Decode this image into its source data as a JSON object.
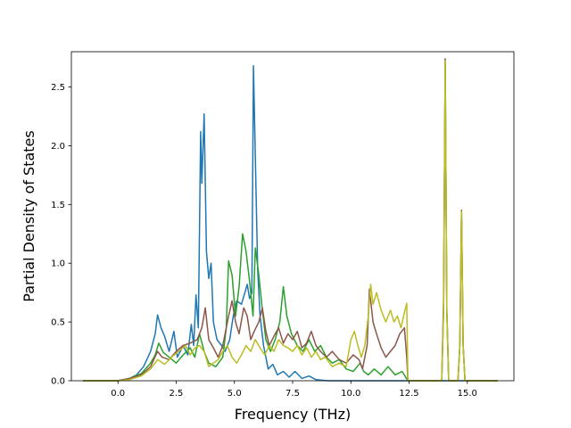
{
  "chart_data": {
    "type": "line",
    "title": "",
    "xlabel": "Frequency (THz)",
    "ylabel": "Partial Density of States",
    "xlim": [
      -2.0,
      17.0
    ],
    "ylim": [
      0.0,
      2.8
    ],
    "xticks": [
      0.0,
      2.5,
      5.0,
      7.5,
      10.0,
      12.5,
      15.0
    ],
    "xtick_labels": [
      "0.0",
      "2.5",
      "5.0",
      "7.5",
      "10.0",
      "12.5",
      "15.0"
    ],
    "yticks": [
      0.0,
      0.5,
      1.0,
      1.5,
      2.0,
      2.5
    ],
    "ytick_labels": [
      "0.0",
      "0.5",
      "1.0",
      "1.5",
      "2.0",
      "2.5"
    ],
    "grid": false,
    "legend": false,
    "series": [
      {
        "color": "#1f77b4",
        "points": [
          [
            -1.5,
            0.0
          ],
          [
            0.0,
            0.0
          ],
          [
            0.5,
            0.02
          ],
          [
            0.8,
            0.05
          ],
          [
            1.1,
            0.12
          ],
          [
            1.4,
            0.25
          ],
          [
            1.6,
            0.4
          ],
          [
            1.7,
            0.56
          ],
          [
            1.85,
            0.45
          ],
          [
            2.0,
            0.38
          ],
          [
            2.2,
            0.25
          ],
          [
            2.4,
            0.42
          ],
          [
            2.55,
            0.2
          ],
          [
            2.8,
            0.3
          ],
          [
            3.0,
            0.22
          ],
          [
            3.15,
            0.48
          ],
          [
            3.25,
            0.3
          ],
          [
            3.35,
            0.73
          ],
          [
            3.45,
            0.45
          ],
          [
            3.55,
            2.12
          ],
          [
            3.6,
            1.68
          ],
          [
            3.7,
            2.27
          ],
          [
            3.8,
            1.1
          ],
          [
            3.9,
            0.87
          ],
          [
            4.0,
            1.0
          ],
          [
            4.1,
            0.5
          ],
          [
            4.25,
            0.35
          ],
          [
            4.45,
            0.3
          ],
          [
            4.6,
            0.25
          ],
          [
            4.8,
            0.35
          ],
          [
            4.95,
            0.55
          ],
          [
            5.1,
            0.68
          ],
          [
            5.3,
            0.65
          ],
          [
            5.45,
            0.75
          ],
          [
            5.55,
            0.82
          ],
          [
            5.65,
            0.7
          ],
          [
            5.75,
            0.75
          ],
          [
            5.82,
            2.68
          ],
          [
            5.9,
            1.9
          ],
          [
            6.0,
            0.95
          ],
          [
            6.1,
            0.55
          ],
          [
            6.25,
            0.3
          ],
          [
            6.45,
            0.1
          ],
          [
            6.65,
            0.14
          ],
          [
            6.85,
            0.05
          ],
          [
            7.1,
            0.08
          ],
          [
            7.35,
            0.03
          ],
          [
            7.6,
            0.08
          ],
          [
            7.9,
            0.02
          ],
          [
            8.2,
            0.04
          ],
          [
            8.5,
            0.01
          ],
          [
            9.0,
            0.0
          ],
          [
            16.3,
            0.0
          ]
        ]
      },
      {
        "color": "#2ca02c",
        "points": [
          [
            -1.5,
            0.0
          ],
          [
            0.0,
            0.0
          ],
          [
            0.5,
            0.02
          ],
          [
            1.0,
            0.06
          ],
          [
            1.4,
            0.15
          ],
          [
            1.6,
            0.22
          ],
          [
            1.75,
            0.32
          ],
          [
            1.95,
            0.24
          ],
          [
            2.2,
            0.2
          ],
          [
            2.5,
            0.15
          ],
          [
            2.8,
            0.22
          ],
          [
            3.1,
            0.28
          ],
          [
            3.3,
            0.2
          ],
          [
            3.5,
            0.4
          ],
          [
            3.7,
            0.25
          ],
          [
            3.9,
            0.15
          ],
          [
            4.2,
            0.12
          ],
          [
            4.5,
            0.2
          ],
          [
            4.65,
            0.45
          ],
          [
            4.75,
            1.02
          ],
          [
            4.9,
            0.9
          ],
          [
            5.05,
            0.55
          ],
          [
            5.2,
            0.8
          ],
          [
            5.35,
            1.25
          ],
          [
            5.5,
            1.1
          ],
          [
            5.65,
            0.85
          ],
          [
            5.8,
            0.55
          ],
          [
            5.9,
            1.13
          ],
          [
            6.05,
            0.9
          ],
          [
            6.2,
            0.6
          ],
          [
            6.35,
            0.35
          ],
          [
            6.55,
            0.25
          ],
          [
            6.75,
            0.35
          ],
          [
            6.95,
            0.5
          ],
          [
            7.1,
            0.8
          ],
          [
            7.25,
            0.55
          ],
          [
            7.45,
            0.4
          ],
          [
            7.7,
            0.3
          ],
          [
            7.95,
            0.25
          ],
          [
            8.2,
            0.35
          ],
          [
            8.45,
            0.25
          ],
          [
            8.7,
            0.3
          ],
          [
            8.95,
            0.2
          ],
          [
            9.2,
            0.15
          ],
          [
            9.5,
            0.18
          ],
          [
            9.8,
            0.1
          ],
          [
            10.1,
            0.08
          ],
          [
            10.4,
            0.15
          ],
          [
            10.55,
            0.08
          ],
          [
            10.75,
            0.05
          ],
          [
            11.0,
            0.1
          ],
          [
            11.3,
            0.05
          ],
          [
            11.6,
            0.12
          ],
          [
            11.9,
            0.05
          ],
          [
            12.2,
            0.08
          ],
          [
            12.45,
            0.0
          ],
          [
            13.9,
            0.0
          ],
          [
            13.98,
            0.6
          ],
          [
            14.05,
            2.7
          ],
          [
            14.12,
            0.6
          ],
          [
            14.2,
            0.0
          ],
          [
            14.6,
            0.0
          ],
          [
            14.68,
            0.3
          ],
          [
            14.75,
            1.45
          ],
          [
            14.82,
            0.3
          ],
          [
            14.9,
            0.0
          ],
          [
            16.3,
            0.0
          ]
        ]
      },
      {
        "color": "#8c564b",
        "points": [
          [
            -1.5,
            0.0
          ],
          [
            0.0,
            0.0
          ],
          [
            0.5,
            0.02
          ],
          [
            1.0,
            0.05
          ],
          [
            1.4,
            0.12
          ],
          [
            1.7,
            0.25
          ],
          [
            1.9,
            0.2
          ],
          [
            2.2,
            0.18
          ],
          [
            2.5,
            0.25
          ],
          [
            2.8,
            0.3
          ],
          [
            3.1,
            0.32
          ],
          [
            3.4,
            0.35
          ],
          [
            3.6,
            0.45
          ],
          [
            3.75,
            0.62
          ],
          [
            3.9,
            0.35
          ],
          [
            4.1,
            0.28
          ],
          [
            4.3,
            0.2
          ],
          [
            4.5,
            0.3
          ],
          [
            4.75,
            0.55
          ],
          [
            4.9,
            0.68
          ],
          [
            5.05,
            0.5
          ],
          [
            5.2,
            0.4
          ],
          [
            5.4,
            0.62
          ],
          [
            5.55,
            0.55
          ],
          [
            5.7,
            0.35
          ],
          [
            5.85,
            0.42
          ],
          [
            6.05,
            0.5
          ],
          [
            6.2,
            0.62
          ],
          [
            6.35,
            0.42
          ],
          [
            6.5,
            0.3
          ],
          [
            6.7,
            0.38
          ],
          [
            6.9,
            0.45
          ],
          [
            7.1,
            0.32
          ],
          [
            7.3,
            0.4
          ],
          [
            7.5,
            0.35
          ],
          [
            7.7,
            0.42
          ],
          [
            7.9,
            0.28
          ],
          [
            8.1,
            0.32
          ],
          [
            8.3,
            0.42
          ],
          [
            8.5,
            0.3
          ],
          [
            8.7,
            0.25
          ],
          [
            8.95,
            0.2
          ],
          [
            9.2,
            0.25
          ],
          [
            9.5,
            0.18
          ],
          [
            9.8,
            0.15
          ],
          [
            10.1,
            0.22
          ],
          [
            10.35,
            0.18
          ],
          [
            10.5,
            0.1
          ],
          [
            10.7,
            0.3
          ],
          [
            10.8,
            0.78
          ],
          [
            10.95,
            0.5
          ],
          [
            11.1,
            0.4
          ],
          [
            11.3,
            0.28
          ],
          [
            11.5,
            0.2
          ],
          [
            11.7,
            0.25
          ],
          [
            11.9,
            0.3
          ],
          [
            12.1,
            0.4
          ],
          [
            12.3,
            0.45
          ],
          [
            12.4,
            0.2
          ],
          [
            12.45,
            0.0
          ],
          [
            13.9,
            0.0
          ],
          [
            13.98,
            0.7
          ],
          [
            14.05,
            2.74
          ],
          [
            14.12,
            0.6
          ],
          [
            14.2,
            0.0
          ],
          [
            14.6,
            0.0
          ],
          [
            14.68,
            0.3
          ],
          [
            14.75,
            1.45
          ],
          [
            14.82,
            0.3
          ],
          [
            14.9,
            0.0
          ],
          [
            16.3,
            0.0
          ]
        ]
      },
      {
        "color": "#bcbd22",
        "points": [
          [
            -1.5,
            0.0
          ],
          [
            0.0,
            0.0
          ],
          [
            0.5,
            0.01
          ],
          [
            1.0,
            0.04
          ],
          [
            1.4,
            0.1
          ],
          [
            1.7,
            0.18
          ],
          [
            2.0,
            0.14
          ],
          [
            2.3,
            0.2
          ],
          [
            2.6,
            0.25
          ],
          [
            2.9,
            0.3
          ],
          [
            3.1,
            0.22
          ],
          [
            3.3,
            0.28
          ],
          [
            3.5,
            0.3
          ],
          [
            3.7,
            0.25
          ],
          [
            3.9,
            0.12
          ],
          [
            4.1,
            0.15
          ],
          [
            4.3,
            0.18
          ],
          [
            4.5,
            0.25
          ],
          [
            4.7,
            0.3
          ],
          [
            4.9,
            0.2
          ],
          [
            5.1,
            0.15
          ],
          [
            5.3,
            0.22
          ],
          [
            5.5,
            0.3
          ],
          [
            5.7,
            0.25
          ],
          [
            5.9,
            0.35
          ],
          [
            6.1,
            0.28
          ],
          [
            6.3,
            0.22
          ],
          [
            6.5,
            0.3
          ],
          [
            6.7,
            0.25
          ],
          [
            6.9,
            0.35
          ],
          [
            7.1,
            0.3
          ],
          [
            7.3,
            0.28
          ],
          [
            7.5,
            0.25
          ],
          [
            7.7,
            0.3
          ],
          [
            7.9,
            0.22
          ],
          [
            8.1,
            0.28
          ],
          [
            8.3,
            0.2
          ],
          [
            8.5,
            0.25
          ],
          [
            8.7,
            0.18
          ],
          [
            8.9,
            0.2
          ],
          [
            9.2,
            0.12
          ],
          [
            9.5,
            0.15
          ],
          [
            9.8,
            0.12
          ],
          [
            10.0,
            0.35
          ],
          [
            10.15,
            0.42
          ],
          [
            10.3,
            0.3
          ],
          [
            10.45,
            0.2
          ],
          [
            10.6,
            0.3
          ],
          [
            10.75,
            0.55
          ],
          [
            10.85,
            0.82
          ],
          [
            10.95,
            0.65
          ],
          [
            11.1,
            0.75
          ],
          [
            11.3,
            0.6
          ],
          [
            11.5,
            0.5
          ],
          [
            11.7,
            0.6
          ],
          [
            11.85,
            0.5
          ],
          [
            12.0,
            0.55
          ],
          [
            12.15,
            0.45
          ],
          [
            12.3,
            0.58
          ],
          [
            12.4,
            0.66
          ],
          [
            12.45,
            0.0
          ],
          [
            13.9,
            0.0
          ],
          [
            13.98,
            0.6
          ],
          [
            14.05,
            2.72
          ],
          [
            14.12,
            0.6
          ],
          [
            14.2,
            0.0
          ],
          [
            14.6,
            0.0
          ],
          [
            14.68,
            0.3
          ],
          [
            14.75,
            1.44
          ],
          [
            14.82,
            0.3
          ],
          [
            14.9,
            0.0
          ],
          [
            16.3,
            0.0
          ]
        ]
      }
    ]
  }
}
